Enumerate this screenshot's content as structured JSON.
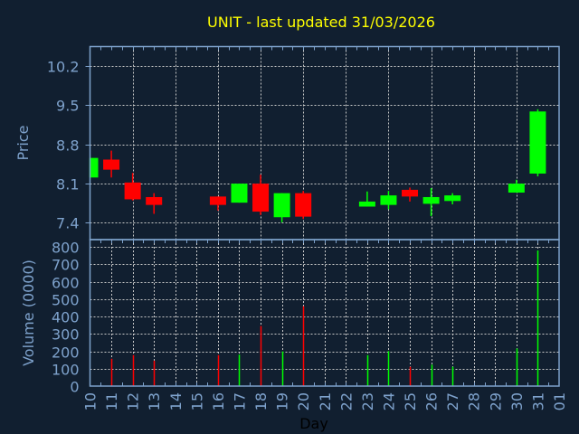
{
  "chart_data": [
    {
      "type": "candlestick",
      "title": "UNIT - last updated 31/03/2026",
      "ylabel": "Price",
      "ylim": [
        7.1,
        10.55
      ],
      "yticks": [
        "10.2",
        "9.5",
        "8.8",
        "8.1",
        "7.4"
      ],
      "grid": true,
      "colors": {
        "up": "#00ff00",
        "down": "#ff0000"
      },
      "candles": [
        {
          "day": "10",
          "open": 8.21,
          "high": 8.56,
          "low": 8.21,
          "close": 8.56
        },
        {
          "day": "11",
          "open": 8.53,
          "high": 8.69,
          "low": 8.21,
          "close": 8.35
        },
        {
          "day": "12",
          "open": 8.12,
          "high": 8.29,
          "low": 7.8,
          "close": 7.82
        },
        {
          "day": "13",
          "open": 7.86,
          "high": 7.93,
          "low": 7.56,
          "close": 7.72
        },
        {
          "day": "16",
          "open": 7.87,
          "high": 7.87,
          "low": 7.62,
          "close": 7.72
        },
        {
          "day": "17",
          "open": 7.76,
          "high": 8.1,
          "low": 7.76,
          "close": 8.1
        },
        {
          "day": "18",
          "open": 8.1,
          "high": 8.26,
          "low": 7.54,
          "close": 7.6
        },
        {
          "day": "19",
          "open": 7.5,
          "high": 7.93,
          "low": 7.41,
          "close": 7.93
        },
        {
          "day": "20",
          "open": 7.93,
          "high": 7.97,
          "low": 7.47,
          "close": 7.51
        },
        {
          "day": "23",
          "open": 7.69,
          "high": 7.96,
          "low": 7.69,
          "close": 7.78
        },
        {
          "day": "24",
          "open": 7.72,
          "high": 7.97,
          "low": 7.64,
          "close": 7.89
        },
        {
          "day": "25",
          "open": 7.99,
          "high": 8.03,
          "low": 7.78,
          "close": 7.87
        },
        {
          "day": "26",
          "open": 7.74,
          "high": 8.02,
          "low": 7.52,
          "close": 7.86
        },
        {
          "day": "27",
          "open": 7.79,
          "high": 7.93,
          "low": 7.73,
          "close": 7.89
        },
        {
          "day": "30",
          "open": 7.94,
          "high": 8.17,
          "low": 7.94,
          "close": 8.1
        },
        {
          "day": "31",
          "open": 8.28,
          "high": 9.43,
          "low": 8.23,
          "close": 9.39
        }
      ]
    },
    {
      "type": "bar",
      "ylabel": "Volume (0000)",
      "xlabel": "Day",
      "ylim": [
        0,
        800
      ],
      "yticks": [
        "0",
        "100",
        "200",
        "300",
        "400",
        "500",
        "600",
        "700",
        "800"
      ],
      "xticks": [
        "10",
        "11",
        "12",
        "13",
        "14",
        "15",
        "16",
        "17",
        "18",
        "19",
        "20",
        "21",
        "22",
        "23",
        "24",
        "25",
        "26",
        "27",
        "28",
        "29",
        "30",
        "31",
        "01"
      ],
      "grid": true,
      "bars": [
        {
          "day": "11",
          "value": 157,
          "direction": "down"
        },
        {
          "day": "12",
          "value": 178,
          "direction": "down"
        },
        {
          "day": "13",
          "value": 146,
          "direction": "down"
        },
        {
          "day": "16",
          "value": 178,
          "direction": "down"
        },
        {
          "day": "17",
          "value": 181,
          "direction": "up"
        },
        {
          "day": "18",
          "value": 345,
          "direction": "down"
        },
        {
          "day": "19",
          "value": 199,
          "direction": "up"
        },
        {
          "day": "20",
          "value": 459,
          "direction": "down"
        },
        {
          "day": "23",
          "value": 178,
          "direction": "up"
        },
        {
          "day": "24",
          "value": 201,
          "direction": "up"
        },
        {
          "day": "25",
          "value": 111,
          "direction": "down"
        },
        {
          "day": "26",
          "value": 123,
          "direction": "up"
        },
        {
          "day": "27",
          "value": 111,
          "direction": "up"
        },
        {
          "day": "30",
          "value": 216,
          "direction": "up"
        },
        {
          "day": "31",
          "value": 779,
          "direction": "up"
        }
      ]
    }
  ]
}
